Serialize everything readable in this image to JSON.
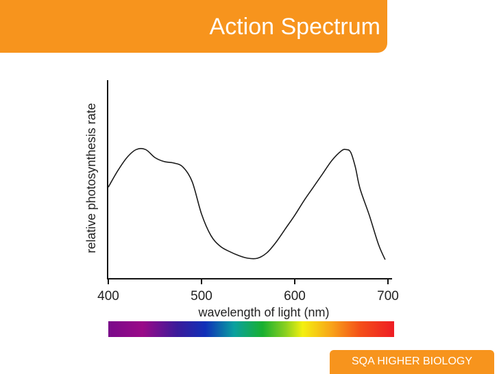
{
  "header": {
    "title": "Action Spectrum"
  },
  "footer": {
    "label": "SQA HIGHER BIOLOGY"
  },
  "colors": {
    "accent": "#f7941d",
    "title_text": "#ffffff",
    "curve": "#000000"
  },
  "chart_data": {
    "type": "line",
    "title": "Action Spectrum",
    "xlabel": "wavelength of light (nm)",
    "ylabel": "relative photosynthesis rate",
    "xlim": [
      400,
      700
    ],
    "ylim": [
      0,
      100
    ],
    "grid": false,
    "x_ticks": [
      400,
      500,
      600,
      700
    ],
    "x_tick_labels": [
      "400",
      "500",
      "600",
      "700"
    ],
    "color_scale": "visible spectrum 400–700 nm",
    "series": [
      {
        "x": [
          400,
          410,
          420,
          430,
          440,
          450,
          460,
          470,
          480,
          490,
          500,
          510,
          520,
          530,
          540,
          550,
          560,
          570,
          580,
          590,
          600,
          610,
          620,
          630,
          640,
          650,
          655,
          660,
          665,
          670,
          680,
          690,
          697
        ],
        "values": [
          54,
          66,
          76,
          82,
          82,
          76,
          73,
          72,
          69,
          58,
          34,
          18,
          10,
          6,
          3,
          1,
          1,
          5,
          13,
          23,
          33,
          44,
          54,
          64,
          74,
          81,
          82,
          80,
          69,
          53,
          33,
          11,
          0
        ]
      }
    ]
  }
}
